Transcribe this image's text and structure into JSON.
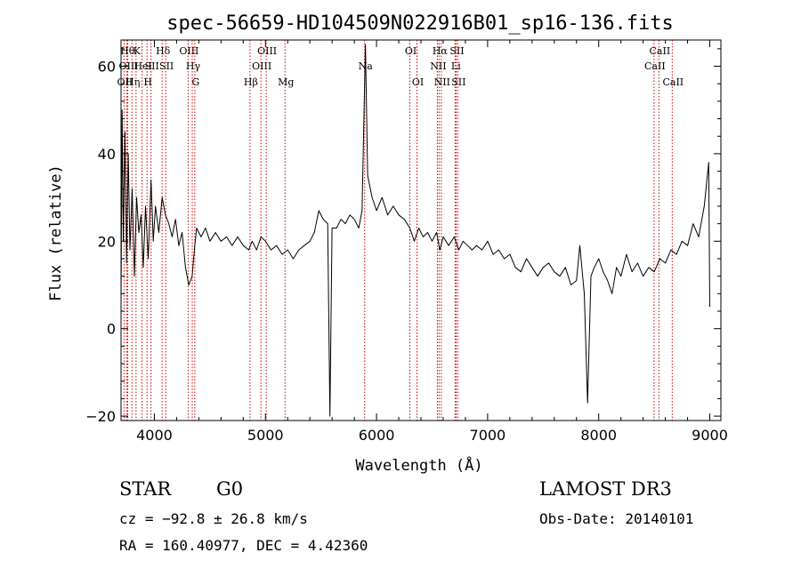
{
  "chart_data": {
    "type": "line",
    "title": "spec-56659-HD104509N022916B01_sp16-136.fits",
    "xlabel": "Wavelength (Å)",
    "ylabel": "Flux (relative)",
    "xlim": [
      3700,
      9100
    ],
    "ylim": [
      -21,
      66
    ],
    "x_ticks": [
      4000,
      5000,
      6000,
      7000,
      8000,
      9000
    ],
    "y_ticks": [
      -20,
      0,
      20,
      40,
      60
    ],
    "x_tick_labels": [
      "4000",
      "5000",
      "6000",
      "7000",
      "8000",
      "9000"
    ],
    "y_tick_labels": [
      "−20",
      "0",
      "20",
      "40",
      "60"
    ],
    "grid": false,
    "series": [
      {
        "color": "#000000",
        "points": [
          [
            3700,
            6
          ],
          [
            3710,
            50
          ],
          [
            3720,
            20
          ],
          [
            3735,
            45
          ],
          [
            3750,
            15
          ],
          [
            3765,
            40
          ],
          [
            3780,
            18
          ],
          [
            3800,
            32
          ],
          [
            3820,
            12
          ],
          [
            3840,
            30
          ],
          [
            3860,
            22
          ],
          [
            3880,
            26
          ],
          [
            3900,
            14
          ],
          [
            3920,
            28
          ],
          [
            3945,
            16
          ],
          [
            3970,
            34
          ],
          [
            3990,
            20
          ],
          [
            4010,
            28
          ],
          [
            4040,
            22
          ],
          [
            4070,
            30
          ],
          [
            4100,
            26
          ],
          [
            4130,
            24
          ],
          [
            4160,
            21
          ],
          [
            4190,
            25
          ],
          [
            4220,
            19
          ],
          [
            4250,
            22
          ],
          [
            4280,
            14
          ],
          [
            4310,
            10
          ],
          [
            4340,
            12
          ],
          [
            4360,
            18
          ],
          [
            4380,
            23
          ],
          [
            4420,
            21
          ],
          [
            4460,
            23
          ],
          [
            4500,
            20
          ],
          [
            4550,
            22
          ],
          [
            4600,
            20
          ],
          [
            4650,
            21
          ],
          [
            4700,
            19
          ],
          [
            4750,
            21
          ],
          [
            4800,
            19
          ],
          [
            4850,
            18
          ],
          [
            4880,
            20
          ],
          [
            4920,
            18
          ],
          [
            4960,
            21
          ],
          [
            5000,
            20
          ],
          [
            5050,
            18
          ],
          [
            5100,
            19
          ],
          [
            5150,
            17
          ],
          [
            5200,
            18
          ],
          [
            5250,
            16
          ],
          [
            5300,
            18
          ],
          [
            5350,
            19
          ],
          [
            5400,
            20
          ],
          [
            5440,
            22
          ],
          [
            5480,
            27
          ],
          [
            5520,
            25
          ],
          [
            5560,
            24
          ],
          [
            5580,
            -20
          ],
          [
            5600,
            23
          ],
          [
            5640,
            23
          ],
          [
            5680,
            25
          ],
          [
            5720,
            24
          ],
          [
            5760,
            26
          ],
          [
            5800,
            25
          ],
          [
            5840,
            23
          ],
          [
            5870,
            27
          ],
          [
            5900,
            65
          ],
          [
            5920,
            35
          ],
          [
            5960,
            30
          ],
          [
            6000,
            27
          ],
          [
            6050,
            30
          ],
          [
            6100,
            26
          ],
          [
            6150,
            28
          ],
          [
            6200,
            26
          ],
          [
            6250,
            25
          ],
          [
            6300,
            23
          ],
          [
            6340,
            20
          ],
          [
            6380,
            23
          ],
          [
            6420,
            21
          ],
          [
            6460,
            22
          ],
          [
            6500,
            20
          ],
          [
            6540,
            22
          ],
          [
            6570,
            18
          ],
          [
            6600,
            21
          ],
          [
            6650,
            19
          ],
          [
            6700,
            21
          ],
          [
            6740,
            18
          ],
          [
            6780,
            20
          ],
          [
            6820,
            19
          ],
          [
            6860,
            18
          ],
          [
            6900,
            19
          ],
          [
            6950,
            18
          ],
          [
            7000,
            20
          ],
          [
            7050,
            17
          ],
          [
            7100,
            18
          ],
          [
            7150,
            16
          ],
          [
            7200,
            17
          ],
          [
            7250,
            14
          ],
          [
            7300,
            13
          ],
          [
            7350,
            16
          ],
          [
            7400,
            14
          ],
          [
            7450,
            12
          ],
          [
            7500,
            14
          ],
          [
            7550,
            15
          ],
          [
            7600,
            13
          ],
          [
            7650,
            12
          ],
          [
            7700,
            14
          ],
          [
            7750,
            10
          ],
          [
            7800,
            11
          ],
          [
            7830,
            19
          ],
          [
            7870,
            8
          ],
          [
            7900,
            -17
          ],
          [
            7930,
            12
          ],
          [
            7960,
            14
          ],
          [
            8000,
            16
          ],
          [
            8040,
            13
          ],
          [
            8080,
            11
          ],
          [
            8120,
            8
          ],
          [
            8160,
            14
          ],
          [
            8200,
            12
          ],
          [
            8250,
            17
          ],
          [
            8300,
            13
          ],
          [
            8350,
            15
          ],
          [
            8400,
            12
          ],
          [
            8450,
            14
          ],
          [
            8500,
            13
          ],
          [
            8550,
            16
          ],
          [
            8600,
            15
          ],
          [
            8650,
            18
          ],
          [
            8700,
            17
          ],
          [
            8750,
            20
          ],
          [
            8800,
            19
          ],
          [
            8850,
            24
          ],
          [
            8900,
            21
          ],
          [
            8950,
            28
          ],
          [
            8990,
            38
          ],
          [
            9000,
            5
          ]
        ]
      }
    ],
    "line_markers": [
      {
        "label": "OII",
        "wavelength": 3727,
        "row": 3
      },
      {
        "label": "Hθ",
        "wavelength": 3750,
        "row": 1
      },
      {
        "label": "OIII",
        "wavelength": 3760,
        "row": 2
      },
      {
        "label": "Hη",
        "wavelength": 3798,
        "row": 3
      },
      {
        "label": "K",
        "wavelength": 3835,
        "row": 1
      },
      {
        "label": "HeI",
        "wavelength": 3889,
        "row": 2
      },
      {
        "label": "H",
        "wavelength": 3934,
        "row": 3
      },
      {
        "label": "SII",
        "wavelength": 3970,
        "row": 2
      },
      {
        "label": "Hδ",
        "wavelength": 4070,
        "row": 1
      },
      {
        "label": "SII",
        "wavelength": 4102,
        "row": 2
      },
      {
        "label": "OIII",
        "wavelength": 4304,
        "row": 1
      },
      {
        "label": "Hγ",
        "wavelength": 4341,
        "row": 2
      },
      {
        "label": "G",
        "wavelength": 4364,
        "row": 3
      },
      {
        "label": "Hβ",
        "wavelength": 4861,
        "row": 3
      },
      {
        "label": "OIII",
        "wavelength": 4959,
        "row": 2
      },
      {
        "label": "OIII",
        "wavelength": 5007,
        "row": 1
      },
      {
        "label": "Mg",
        "wavelength": 5176,
        "row": 3
      },
      {
        "label": "Na",
        "wavelength": 5893,
        "row": 2
      },
      {
        "label": "OI",
        "wavelength": 6300,
        "row": 1
      },
      {
        "label": "OI",
        "wavelength": 6364,
        "row": 3
      },
      {
        "label": "NII",
        "wavelength": 6548,
        "row": 2
      },
      {
        "label": "Hα",
        "wavelength": 6563,
        "row": 1
      },
      {
        "label": "NII",
        "wavelength": 6583,
        "row": 3
      },
      {
        "label": "Li",
        "wavelength": 6707,
        "row": 2
      },
      {
        "label": "SII",
        "wavelength": 6716,
        "row": 1
      },
      {
        "label": "SII",
        "wavelength": 6731,
        "row": 3
      },
      {
        "label": "CaII",
        "wavelength": 8498,
        "row": 2
      },
      {
        "label": "CaII",
        "wavelength": 8542,
        "row": 1
      },
      {
        "label": "CaII",
        "wavelength": 8662,
        "row": 3
      }
    ]
  },
  "info": {
    "class_star": "STAR",
    "class_subclass": "G0",
    "survey": "LAMOST DR3",
    "cz": "cz = −92.8 ± 26.8 km/s",
    "obs_date": "Obs-Date: 20140101",
    "radec": "RA = 160.40977, DEC =   4.42360"
  },
  "colors": {
    "spectrum": "#000000",
    "marker_line": "#cc0000",
    "axes": "#000000",
    "background": "#ffffff"
  }
}
